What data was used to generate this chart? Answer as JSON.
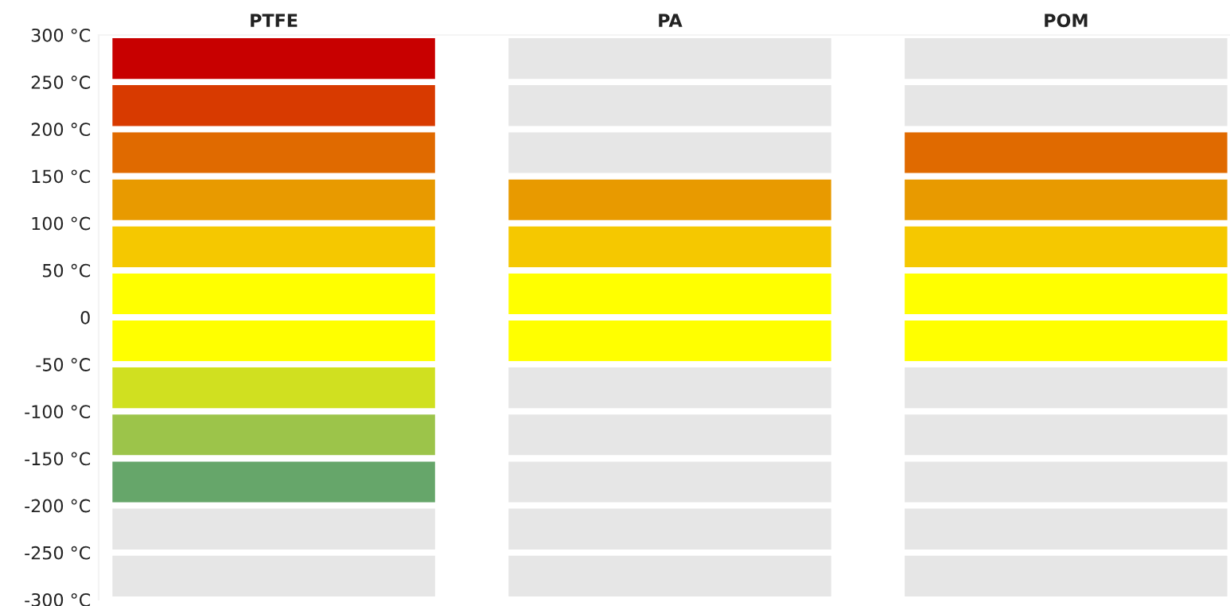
{
  "chart_data": {
    "type": "bar",
    "stacked": true,
    "categories": [
      "PTFE",
      "PA",
      "POM"
    ],
    "series": [
      {
        "values": [
          50,
          50,
          50
        ],
        "colors": [
          "#ffff00",
          "#ffff00",
          "#ffff00"
        ]
      },
      {
        "values": [
          50,
          50,
          50
        ],
        "colors": [
          "#f5c800",
          "#f5c800",
          "#f5c800"
        ]
      },
      {
        "values": [
          50,
          50,
          50
        ],
        "colors": [
          "#e89a00",
          "#e89a00",
          "#e89a00"
        ]
      },
      {
        "values": [
          50,
          50,
          50
        ],
        "colors": [
          "#e06a00",
          "#e6e6e6",
          "#e06a00"
        ]
      },
      {
        "values": [
          50,
          50,
          50
        ],
        "colors": [
          "#d83a00",
          "#e6e6e6",
          "#e6e6e6"
        ]
      },
      {
        "values": [
          50,
          50,
          50
        ],
        "colors": [
          "#c80000",
          "#e6e6e6",
          "#e6e6e6"
        ]
      },
      {
        "values": [
          -50,
          -50,
          -50
        ],
        "colors": [
          "#ffff00",
          "#ffff00",
          "#ffff00"
        ]
      },
      {
        "values": [
          -50,
          -50,
          -50
        ],
        "colors": [
          "#d0e020",
          "#e6e6e6",
          "#e6e6e6"
        ]
      },
      {
        "values": [
          -50,
          -50,
          -50
        ],
        "colors": [
          "#9cc44a",
          "#e6e6e6",
          "#e6e6e6"
        ]
      },
      {
        "values": [
          -50,
          -50,
          -50
        ],
        "colors": [
          "#66a66a",
          "#e6e6e6",
          "#e6e6e6"
        ]
      },
      {
        "values": [
          -50,
          -50,
          -50
        ],
        "colors": [
          "#e6e6e6",
          "#e6e6e6",
          "#e6e6e6"
        ]
      },
      {
        "values": [
          -50,
          -50,
          -50
        ],
        "colors": [
          "#e6e6e6",
          "#e6e6e6",
          "#e6e6e6"
        ]
      }
    ],
    "ylim": [
      -300,
      300
    ],
    "yticks": [
      {
        "value": 300,
        "label": "300 °C"
      },
      {
        "value": 250,
        "label": "250 °C"
      },
      {
        "value": 200,
        "label": "200 °C"
      },
      {
        "value": 150,
        "label": "150 °C"
      },
      {
        "value": 100,
        "label": "100 °C"
      },
      {
        "value": 50,
        "label": "50 °C"
      },
      0,
      {
        "value": -50,
        "label": "-50 °C"
      },
      {
        "value": -100,
        "label": "-100 °C"
      },
      {
        "value": -150,
        "label": "-150 °C"
      },
      {
        "value": -200,
        "label": "-200 °C"
      },
      {
        "value": -250,
        "label": "-250 °C"
      },
      {
        "value": -300,
        "label": "-300 °C"
      }
    ],
    "grid": false,
    "legend": false
  }
}
